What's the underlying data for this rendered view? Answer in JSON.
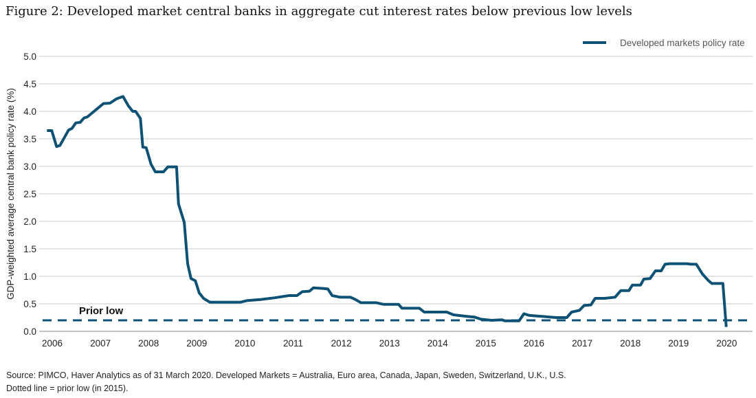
{
  "title": "Figure 2: Developed market central banks in aggregate cut interest rates below previous low levels",
  "source_lines": [
    "Source: PIMCO, Haver Analytics as of 31 March 2020. Developed Markets = Australia, Euro area, Canada, Japan, Sweden, Switzerland, U.K., U.S.",
    "Dotted line = prior low (in 2015)."
  ],
  "colors": {
    "series": "#0d5275",
    "grid": "#c8c8c8",
    "text": "#222222"
  },
  "chart_data": {
    "type": "line",
    "title": "Figure 2: Developed market central banks in aggregate cut interest rates below previous low levels",
    "xlabel": "",
    "ylabel": "GDP-weighted average central bank policy rate (%)",
    "ylim": [
      0,
      5
    ],
    "yticks": [
      "0.0",
      "0.5",
      "1.0",
      "1.5",
      "2.0",
      "2.5",
      "3.0",
      "3.5",
      "4.0",
      "4.5",
      "5.0"
    ],
    "xticks": [
      "2006",
      "2007",
      "2008",
      "2009",
      "2010",
      "2011",
      "2012",
      "2013",
      "2014",
      "2015",
      "2016",
      "2017",
      "2018",
      "2019",
      "2020"
    ],
    "grid": true,
    "legend_position": "top-right",
    "series": [
      {
        "name": "Developed markets policy rate",
        "style": "solid",
        "points": [
          [
            2005.89,
            3.65
          ],
          [
            2005.99,
            3.65
          ],
          [
            2006.09,
            3.36
          ],
          [
            2006.16,
            3.38
          ],
          [
            2006.34,
            3.66
          ],
          [
            2006.41,
            3.69
          ],
          [
            2006.49,
            3.79
          ],
          [
            2006.58,
            3.8
          ],
          [
            2006.66,
            3.88
          ],
          [
            2006.73,
            3.9
          ],
          [
            2007.06,
            4.14
          ],
          [
            2007.2,
            4.15
          ],
          [
            2007.34,
            4.23
          ],
          [
            2007.47,
            4.27
          ],
          [
            2007.58,
            4.1
          ],
          [
            2007.67,
            4.0
          ],
          [
            2007.73,
            4.0
          ],
          [
            2007.83,
            3.87
          ],
          [
            2007.88,
            3.35
          ],
          [
            2007.95,
            3.34
          ],
          [
            2008.05,
            3.04
          ],
          [
            2008.14,
            2.9
          ],
          [
            2008.31,
            2.9
          ],
          [
            2008.4,
            2.99
          ],
          [
            2008.58,
            2.99
          ],
          [
            2008.62,
            2.32
          ],
          [
            2008.74,
            1.98
          ],
          [
            2008.81,
            1.23
          ],
          [
            2008.88,
            0.96
          ],
          [
            2008.97,
            0.92
          ],
          [
            2009.05,
            0.7
          ],
          [
            2009.14,
            0.6
          ],
          [
            2009.27,
            0.53
          ],
          [
            2009.91,
            0.53
          ],
          [
            2010.05,
            0.56
          ],
          [
            2010.34,
            0.58
          ],
          [
            2010.62,
            0.61
          ],
          [
            2010.91,
            0.65
          ],
          [
            2011.08,
            0.65
          ],
          [
            2011.19,
            0.72
          ],
          [
            2011.34,
            0.73
          ],
          [
            2011.42,
            0.79
          ],
          [
            2011.62,
            0.78
          ],
          [
            2011.72,
            0.77
          ],
          [
            2011.81,
            0.65
          ],
          [
            2011.98,
            0.62
          ],
          [
            2012.19,
            0.62
          ],
          [
            2012.29,
            0.58
          ],
          [
            2012.41,
            0.52
          ],
          [
            2012.73,
            0.52
          ],
          [
            2012.88,
            0.49
          ],
          [
            2013.19,
            0.49
          ],
          [
            2013.26,
            0.42
          ],
          [
            2013.62,
            0.42
          ],
          [
            2013.72,
            0.35
          ],
          [
            2014.19,
            0.35
          ],
          [
            2014.33,
            0.3
          ],
          [
            2014.62,
            0.27
          ],
          [
            2014.76,
            0.26
          ],
          [
            2014.9,
            0.22
          ],
          [
            2015.12,
            0.2
          ],
          [
            2015.33,
            0.21
          ],
          [
            2015.4,
            0.19
          ],
          [
            2015.69,
            0.19
          ],
          [
            2015.79,
            0.32
          ],
          [
            2015.9,
            0.29
          ],
          [
            2016.04,
            0.28
          ],
          [
            2016.19,
            0.27
          ],
          [
            2016.33,
            0.26
          ],
          [
            2016.47,
            0.25
          ],
          [
            2016.68,
            0.25
          ],
          [
            2016.78,
            0.35
          ],
          [
            2016.94,
            0.38
          ],
          [
            2017.04,
            0.47
          ],
          [
            2017.18,
            0.48
          ],
          [
            2017.27,
            0.6
          ],
          [
            2017.47,
            0.6
          ],
          [
            2017.68,
            0.62
          ],
          [
            2017.8,
            0.74
          ],
          [
            2017.97,
            0.74
          ],
          [
            2018.04,
            0.84
          ],
          [
            2018.21,
            0.84
          ],
          [
            2018.28,
            0.95
          ],
          [
            2018.41,
            0.96
          ],
          [
            2018.52,
            1.1
          ],
          [
            2018.64,
            1.1
          ],
          [
            2018.72,
            1.22
          ],
          [
            2018.82,
            1.23
          ],
          [
            2019.18,
            1.23
          ],
          [
            2019.25,
            1.22
          ],
          [
            2019.37,
            1.22
          ],
          [
            2019.49,
            1.05
          ],
          [
            2019.61,
            0.93
          ],
          [
            2019.69,
            0.87
          ],
          [
            2019.92,
            0.87
          ],
          [
            2019.99,
            0.08
          ]
        ]
      }
    ],
    "reference_line": {
      "label": "Prior low",
      "value": 0.2,
      "style": "dashed"
    }
  }
}
